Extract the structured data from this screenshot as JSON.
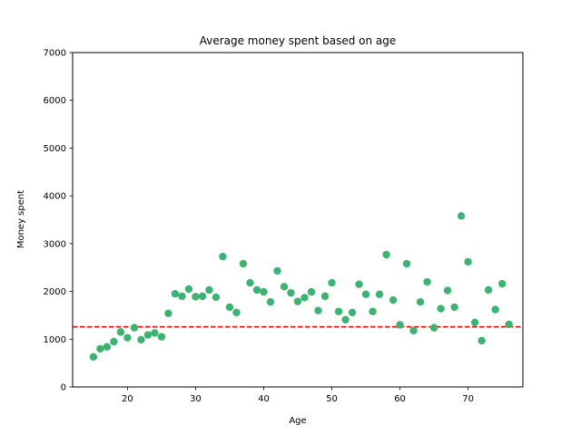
{
  "chart_data": {
    "type": "scatter",
    "title": "Average money spent based on age",
    "xlabel": "Age",
    "ylabel": "Money spent",
    "xlim": [
      11.95,
      78.05
    ],
    "ylim": [
      0,
      7000
    ],
    "xticks": [
      20,
      30,
      40,
      50,
      60,
      70
    ],
    "yticks": [
      0,
      1000,
      2000,
      3000,
      4000,
      5000,
      6000,
      7000
    ],
    "grid": false,
    "legend": "none",
    "point_color": "#3cb371",
    "reference_line": {
      "y": 1260,
      "color": "#e00000",
      "style": "dashed"
    },
    "points": [
      {
        "x": 15,
        "y": 630
      },
      {
        "x": 16,
        "y": 800
      },
      {
        "x": 17,
        "y": 840
      },
      {
        "x": 18,
        "y": 950
      },
      {
        "x": 19,
        "y": 1150
      },
      {
        "x": 20,
        "y": 1030
      },
      {
        "x": 21,
        "y": 1240
      },
      {
        "x": 22,
        "y": 990
      },
      {
        "x": 23,
        "y": 1090
      },
      {
        "x": 24,
        "y": 1130
      },
      {
        "x": 25,
        "y": 1050
      },
      {
        "x": 26,
        "y": 1540
      },
      {
        "x": 27,
        "y": 1950
      },
      {
        "x": 28,
        "y": 1900
      },
      {
        "x": 29,
        "y": 2050
      },
      {
        "x": 30,
        "y": 1890
      },
      {
        "x": 31,
        "y": 1900
      },
      {
        "x": 32,
        "y": 2030
      },
      {
        "x": 33,
        "y": 1880
      },
      {
        "x": 34,
        "y": 2730
      },
      {
        "x": 35,
        "y": 1670
      },
      {
        "x": 36,
        "y": 1560
      },
      {
        "x": 37,
        "y": 2580
      },
      {
        "x": 38,
        "y": 2180
      },
      {
        "x": 39,
        "y": 2030
      },
      {
        "x": 40,
        "y": 1990
      },
      {
        "x": 41,
        "y": 1780
      },
      {
        "x": 42,
        "y": 2430
      },
      {
        "x": 43,
        "y": 2100
      },
      {
        "x": 44,
        "y": 1970
      },
      {
        "x": 45,
        "y": 1790
      },
      {
        "x": 46,
        "y": 1870
      },
      {
        "x": 47,
        "y": 1990
      },
      {
        "x": 48,
        "y": 1600
      },
      {
        "x": 49,
        "y": 1900
      },
      {
        "x": 50,
        "y": 2180
      },
      {
        "x": 51,
        "y": 1580
      },
      {
        "x": 52,
        "y": 1410
      },
      {
        "x": 53,
        "y": 1560
      },
      {
        "x": 54,
        "y": 2150
      },
      {
        "x": 55,
        "y": 1940
      },
      {
        "x": 56,
        "y": 1580
      },
      {
        "x": 57,
        "y": 1940
      },
      {
        "x": 58,
        "y": 2770
      },
      {
        "x": 59,
        "y": 1820
      },
      {
        "x": 60,
        "y": 1300
      },
      {
        "x": 61,
        "y": 2580
      },
      {
        "x": 62,
        "y": 1180
      },
      {
        "x": 63,
        "y": 1780
      },
      {
        "x": 64,
        "y": 2200
      },
      {
        "x": 65,
        "y": 1240
      },
      {
        "x": 66,
        "y": 1640
      },
      {
        "x": 67,
        "y": 2020
      },
      {
        "x": 68,
        "y": 1670
      },
      {
        "x": 69,
        "y": 3580
      },
      {
        "x": 70,
        "y": 2620
      },
      {
        "x": 71,
        "y": 1350
      },
      {
        "x": 72,
        "y": 970
      },
      {
        "x": 73,
        "y": 2030
      },
      {
        "x": 74,
        "y": 1620
      },
      {
        "x": 75,
        "y": 2160
      },
      {
        "x": 76,
        "y": 1310
      }
    ]
  }
}
